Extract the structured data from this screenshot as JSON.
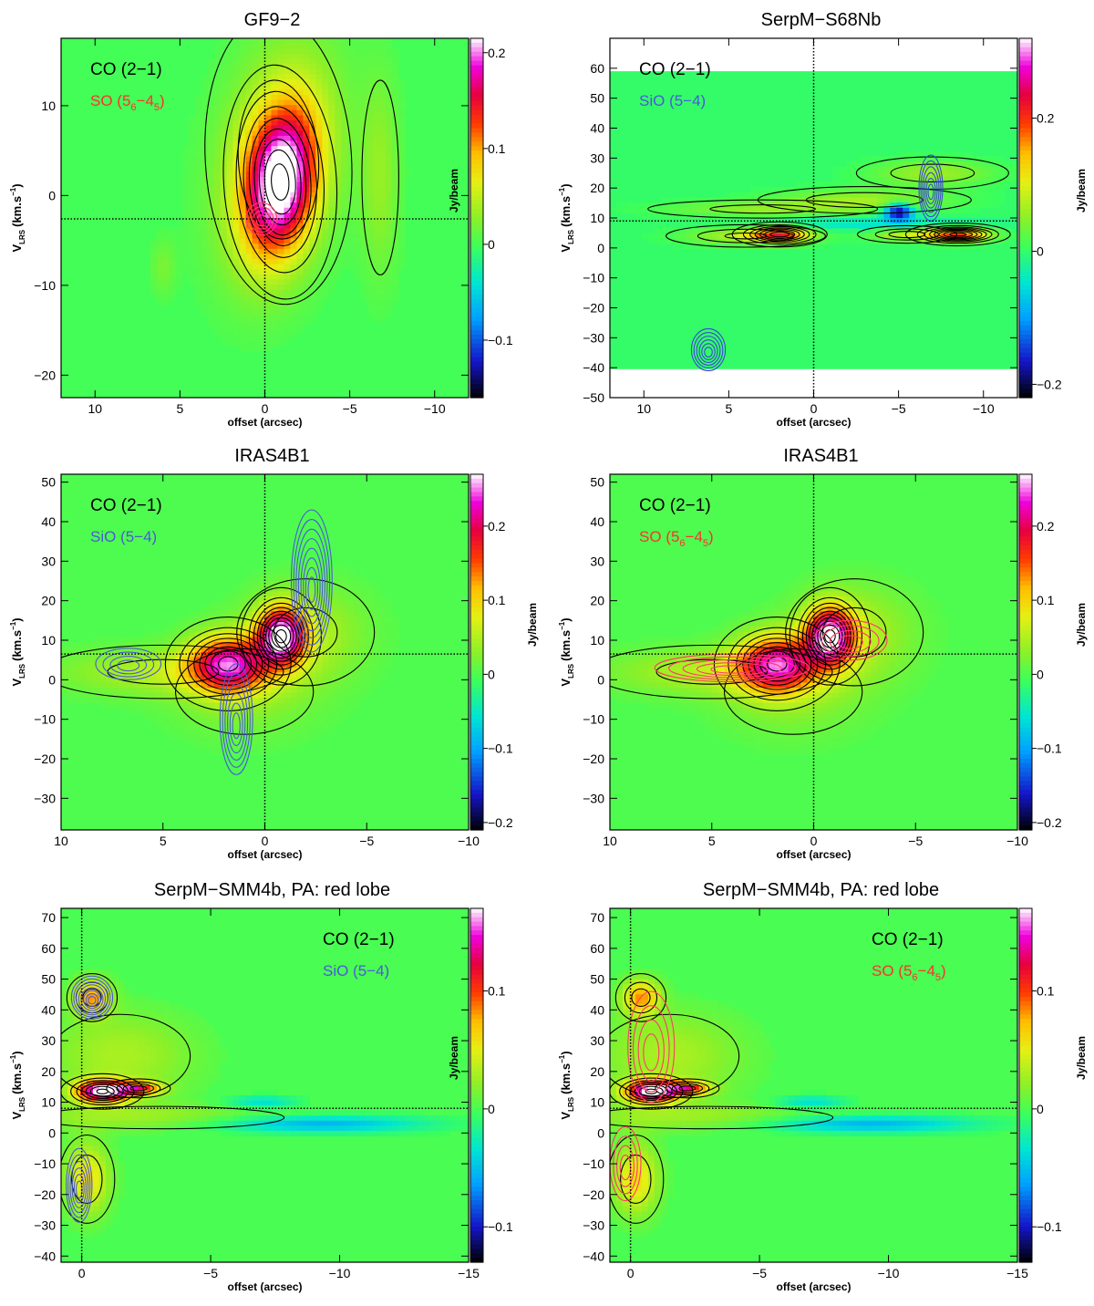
{
  "figure": {
    "xlabel": "offset (arcsec)",
    "ylabel_main": "V",
    "ylabel_sub": "LRS",
    "ylabel_units": "(km.s",
    "ylabel_exp": "−1",
    "ylabel_close": ")",
    "colorbar_label": "Jy/beam"
  },
  "chart_data": [
    {
      "id": "p1",
      "type": "heatmap",
      "title": "GF9−2",
      "xlim": [
        12,
        -12
      ],
      "ylim": [
        -22.5,
        17.5
      ],
      "xticks": [
        "10",
        "5",
        "0",
        "−5",
        "−10"
      ],
      "xtick_values": [
        10,
        5,
        0,
        -5,
        -10
      ],
      "yticks": [
        "−20",
        "−10",
        "0",
        "10"
      ],
      "ytick_values": [
        -20,
        -10,
        0,
        10
      ],
      "cbar_range": [
        -0.16,
        0.215
      ],
      "cbar_ticks": [
        "−0.1",
        "0",
        "0.1",
        "0.2"
      ],
      "cbar_tick_values": [
        -0.1,
        0,
        0.1,
        0.2
      ],
      "cbar_label_side": "left",
      "ref_x": 0,
      "ref_y": -2.6,
      "mask_y": null,
      "legend": [
        {
          "main": "CO (2−1)",
          "color": "#000000"
        },
        {
          "main": "SO (5",
          "sub1": "6",
          "mid": "−4",
          "sub2": "5",
          "end": ")",
          "color": "#ff3030"
        }
      ],
      "legend_pos": "top-left",
      "blobs": [
        {
          "x": -0.9,
          "y": 1.5,
          "sx": 1.4,
          "sy": 5.5,
          "a": 0.2,
          "rot": -0.25
        },
        {
          "x": -0.8,
          "y": 4,
          "sx": 2.4,
          "sy": 9,
          "a": 0.06,
          "rot": -0.25
        },
        {
          "x": -6.8,
          "y": 2,
          "sx": 0.8,
          "sy": 8,
          "a": 0.03
        },
        {
          "x": 6,
          "y": -8,
          "sx": 0.5,
          "sy": 2.2,
          "a": 0.02
        }
      ],
      "overlays": [
        {
          "color": "#ff3a6a",
          "x": 0.2,
          "y": -2.6,
          "sx": 0.9,
          "sy": 1.8,
          "n": 4
        }
      ]
    },
    {
      "id": "p2",
      "type": "heatmap",
      "title": "SerpM−S68Nb",
      "xlim": [
        12,
        -12
      ],
      "ylim": [
        -50,
        70
      ],
      "xticks": [
        "10",
        "5",
        "0",
        "−5",
        "−10"
      ],
      "xtick_values": [
        10,
        5,
        0,
        -5,
        -10
      ],
      "yticks": [
        "−50",
        "−40",
        "−30",
        "−20",
        "−10",
        "0",
        "10",
        "20",
        "30",
        "40",
        "50",
        "60"
      ],
      "ytick_values": [
        -50,
        -40,
        -30,
        -20,
        -10,
        0,
        10,
        20,
        30,
        40,
        50,
        60
      ],
      "cbar_range": [
        -0.22,
        0.32
      ],
      "cbar_ticks": [
        "−0.2",
        "0",
        "0.2"
      ],
      "cbar_tick_values": [
        -0.2,
        0,
        0.2
      ],
      "cbar_label_side": "right",
      "ref_x": 0,
      "ref_y": 9,
      "mask_y": [
        -40.5,
        59
      ],
      "legend": [
        {
          "main": "CO (2−1)",
          "color": "#000000"
        },
        {
          "main": "SiO (5−4)",
          "color": "#4a5ad8"
        }
      ],
      "legend_pos": "top-left",
      "blobs": [
        {
          "x": 2,
          "y": 4.5,
          "sx": 1.2,
          "sy": 1.8,
          "a": 0.18
        },
        {
          "x": 4,
          "y": 4,
          "sx": 2.5,
          "sy": 2,
          "a": 0.07
        },
        {
          "x": -8.5,
          "y": 4.5,
          "sx": 1.3,
          "sy": 1.6,
          "a": 0.2
        },
        {
          "x": -5.5,
          "y": 4.5,
          "sx": 1.5,
          "sy": 1.5,
          "a": 0.08
        },
        {
          "x": -3,
          "y": 16,
          "sx": 3.5,
          "sy": 2.5,
          "a": 0.06
        },
        {
          "x": -7,
          "y": 25,
          "sx": 2.5,
          "sy": 3,
          "a": 0.06
        },
        {
          "x": 3,
          "y": 13,
          "sx": 4,
          "sy": 1.8,
          "a": 0.05
        },
        {
          "x": -5,
          "y": 12,
          "sx": 0.6,
          "sy": 2,
          "a": -0.2
        },
        {
          "x": -3.5,
          "y": 8,
          "sx": 5,
          "sy": 1.5,
          "a": -0.05
        }
      ],
      "overlays": [
        {
          "color": "#3a48d8",
          "x": 6.2,
          "y": -34,
          "sx": 1.0,
          "sy": 7,
          "n": 6
        },
        {
          "color": "#3a48d8",
          "x": -6.9,
          "y": 20,
          "sx": 0.7,
          "sy": 11,
          "n": 6
        }
      ]
    },
    {
      "id": "p3",
      "type": "heatmap",
      "title": "IRAS4B1",
      "xlim": [
        10,
        -10
      ],
      "ylim": [
        -38,
        52
      ],
      "xticks": [
        "10",
        "5",
        "0",
        "−5",
        "−10"
      ],
      "xtick_values": [
        10,
        5,
        0,
        -5,
        -10
      ],
      "yticks": [
        "−30",
        "−20",
        "−10",
        "0",
        "10",
        "20",
        "30",
        "40",
        "50"
      ],
      "ytick_values": [
        -30,
        -20,
        -10,
        0,
        10,
        20,
        30,
        40,
        50
      ],
      "cbar_range": [
        -0.21,
        0.27
      ],
      "cbar_ticks": [
        "−0.2",
        "−0.1",
        "0",
        "0.1",
        "0.2"
      ],
      "cbar_tick_values": [
        -0.2,
        -0.1,
        0,
        0.1,
        0.2
      ],
      "cbar_label_side": "right",
      "ref_x": 0,
      "ref_y": 6.5,
      "mask_y": null,
      "legend": [
        {
          "main": "CO (2−1)",
          "color": "#000000"
        },
        {
          "main": "SiO (5−4)",
          "color": "#4a5ad8"
        }
      ],
      "legend_pos": "top-left",
      "blobs": [
        {
          "x": 1.8,
          "y": 4,
          "sx": 1.3,
          "sy": 5,
          "a": 0.2
        },
        {
          "x": -0.8,
          "y": 11,
          "sx": 0.8,
          "sy": 5,
          "a": 0.25
        },
        {
          "x": 5,
          "y": 2,
          "sx": 3.5,
          "sy": 4,
          "a": 0.05
        },
        {
          "x": -2,
          "y": 12,
          "sx": 2,
          "sy": 8,
          "a": 0.05
        },
        {
          "x": 1,
          "y": -3,
          "sx": 2.5,
          "sy": 8,
          "a": 0.03
        }
      ],
      "overlays": [
        {
          "color": "#4a5ad8",
          "x": -2.3,
          "y": 25,
          "sx": 1.0,
          "sy": 18,
          "n": 8
        },
        {
          "color": "#4a5ad8",
          "x": 1.4,
          "y": -10,
          "sx": 0.8,
          "sy": 14,
          "n": 6
        },
        {
          "color": "#4a5ad8",
          "x": 6.7,
          "y": 4,
          "sx": 1.6,
          "sy": 4,
          "n": 4
        }
      ]
    },
    {
      "id": "p4",
      "type": "heatmap",
      "title": "IRAS4B1",
      "xlim": [
        10,
        -10
      ],
      "ylim": [
        -38,
        52
      ],
      "xticks": [
        "10",
        "5",
        "0",
        "−5",
        "−10"
      ],
      "xtick_values": [
        10,
        5,
        0,
        -5,
        -10
      ],
      "yticks": [
        "−30",
        "−20",
        "−10",
        "0",
        "10",
        "20",
        "30",
        "40",
        "50"
      ],
      "ytick_values": [
        -30,
        -20,
        -10,
        0,
        10,
        20,
        30,
        40,
        50
      ],
      "cbar_range": [
        -0.21,
        0.27
      ],
      "cbar_ticks": [
        "−0.2",
        "−0.1",
        "0",
        "0.1",
        "0.2"
      ],
      "cbar_tick_values": [
        -0.2,
        -0.1,
        0,
        0.1,
        0.2
      ],
      "cbar_label_side": "right",
      "ref_x": 0,
      "ref_y": 6.5,
      "mask_y": null,
      "legend": [
        {
          "main": "CO (2−1)",
          "color": "#000000"
        },
        {
          "main": "SO (5",
          "sub1": "6",
          "mid": "−4",
          "sub2": "5",
          "end": ")",
          "color": "#ff3030"
        }
      ],
      "legend_pos": "top-left",
      "blobs": [
        {
          "x": 1.8,
          "y": 4,
          "sx": 1.3,
          "sy": 5,
          "a": 0.2
        },
        {
          "x": -0.8,
          "y": 11,
          "sx": 0.8,
          "sy": 5,
          "a": 0.25
        },
        {
          "x": 5,
          "y": 2,
          "sx": 3.5,
          "sy": 4,
          "a": 0.05
        },
        {
          "x": -2,
          "y": 12,
          "sx": 2,
          "sy": 8,
          "a": 0.05
        },
        {
          "x": 1,
          "y": -3,
          "sx": 2.5,
          "sy": 8,
          "a": 0.03
        }
      ],
      "overlays": [
        {
          "color": "#ff3a6a",
          "x": 4,
          "y": 3,
          "sx": 3.8,
          "sy": 3.5,
          "n": 5
        },
        {
          "color": "#ff3a6a",
          "x": -1.8,
          "y": 10,
          "sx": 1.8,
          "sy": 5,
          "n": 4
        }
      ]
    },
    {
      "id": "p5",
      "type": "heatmap",
      "title": "SerpM−SMM4b, PA: red lobe",
      "xlim": [
        0.8,
        -15
      ],
      "ylim": [
        -42,
        73
      ],
      "xticks": [
        "0",
        "−5",
        "−10",
        "−15"
      ],
      "xtick_values": [
        0,
        -5,
        -10,
        -15
      ],
      "yticks": [
        "−40",
        "−30",
        "−20",
        "−10",
        "0",
        "10",
        "20",
        "30",
        "40",
        "50",
        "60",
        "70"
      ],
      "ytick_values": [
        -40,
        -30,
        -20,
        -10,
        0,
        10,
        20,
        30,
        40,
        50,
        60,
        70
      ],
      "cbar_range": [
        -0.13,
        0.17
      ],
      "cbar_ticks": [
        "−0.1",
        "0",
        "0.1"
      ],
      "cbar_tick_values": [
        -0.1,
        0,
        0.1
      ],
      "cbar_label_side": "left",
      "ref_x": 0,
      "ref_y": 8,
      "mask_y": null,
      "legend": [
        {
          "main": "CO (2−1)",
          "color": "#000000"
        },
        {
          "main": "SiO (5−4)",
          "color": "#4a5ad8"
        }
      ],
      "legend_pos": "top-right",
      "blobs": [
        {
          "x": -0.8,
          "y": 13.5,
          "sx": 0.7,
          "sy": 2.5,
          "a": 0.17
        },
        {
          "x": -2.2,
          "y": 14.5,
          "sx": 0.6,
          "sy": 1.5,
          "a": 0.1
        },
        {
          "x": -0.4,
          "y": 44,
          "sx": 0.5,
          "sy": 4,
          "a": 0.08
        },
        {
          "x": -0.2,
          "y": -15,
          "sx": 0.6,
          "sy": 8,
          "a": 0.06
        },
        {
          "x": -1.5,
          "y": 25,
          "sx": 2,
          "sy": 10,
          "a": 0.03
        },
        {
          "x": -3,
          "y": 5,
          "sx": 4,
          "sy": 3,
          "a": 0.025
        },
        {
          "x": -9,
          "y": 3,
          "sx": 3,
          "sy": 2,
          "a": -0.06
        },
        {
          "x": -7,
          "y": 10,
          "sx": 1,
          "sy": 1.5,
          "a": -0.04
        }
      ],
      "overlays": [
        {
          "color": "#4a5ad8",
          "x": -0.4,
          "y": 44,
          "sx": 0.8,
          "sy": 7,
          "n": 8
        },
        {
          "color": "#4a5ad8",
          "x": 0.1,
          "y": -17,
          "sx": 0.5,
          "sy": 12,
          "n": 6
        }
      ]
    },
    {
      "id": "p6",
      "type": "heatmap",
      "title": "SerpM−SMM4b, PA: red lobe",
      "xlim": [
        0.8,
        -15
      ],
      "ylim": [
        -42,
        73
      ],
      "xticks": [
        "0",
        "−5",
        "−10",
        "−15"
      ],
      "xtick_values": [
        0,
        -5,
        -10,
        -15
      ],
      "yticks": [
        "−40",
        "−30",
        "−20",
        "−10",
        "0",
        "10",
        "20",
        "30",
        "40",
        "50",
        "60",
        "70"
      ],
      "ytick_values": [
        -40,
        -30,
        -20,
        -10,
        0,
        10,
        20,
        30,
        40,
        50,
        60,
        70
      ],
      "cbar_range": [
        -0.13,
        0.17
      ],
      "cbar_ticks": [
        "−0.1",
        "0",
        "0.1"
      ],
      "cbar_tick_values": [
        -0.1,
        0,
        0.1
      ],
      "cbar_label_side": "right",
      "ref_x": 0,
      "ref_y": 8,
      "mask_y": null,
      "legend": [
        {
          "main": "CO (2−1)",
          "color": "#000000"
        },
        {
          "main": "SO (5",
          "sub1": "6",
          "mid": "−4",
          "sub2": "5",
          "end": ")",
          "color": "#ff3030"
        }
      ],
      "legend_pos": "top-right",
      "blobs": [
        {
          "x": -0.8,
          "y": 13.5,
          "sx": 0.7,
          "sy": 2.5,
          "a": 0.17
        },
        {
          "x": -2.2,
          "y": 14.5,
          "sx": 0.6,
          "sy": 1.5,
          "a": 0.1
        },
        {
          "x": -0.4,
          "y": 44,
          "sx": 0.5,
          "sy": 4,
          "a": 0.08
        },
        {
          "x": -0.2,
          "y": -15,
          "sx": 0.6,
          "sy": 8,
          "a": 0.06
        },
        {
          "x": -1.5,
          "y": 25,
          "sx": 2,
          "sy": 10,
          "a": 0.03
        },
        {
          "x": -3,
          "y": 5,
          "sx": 4,
          "sy": 3,
          "a": 0.025
        },
        {
          "x": -9,
          "y": 3,
          "sx": 3,
          "sy": 2,
          "a": -0.06
        },
        {
          "x": -7,
          "y": 10,
          "sx": 1,
          "sy": 1.5,
          "a": -0.04
        }
      ],
      "overlays": [
        {
          "color": "#ff3a6a",
          "x": -0.8,
          "y": 28,
          "sx": 0.9,
          "sy": 18,
          "n": 4
        },
        {
          "color": "#ff3a6a",
          "x": 0.2,
          "y": -10,
          "sx": 0.6,
          "sy": 12,
          "n": 4
        }
      ]
    }
  ]
}
